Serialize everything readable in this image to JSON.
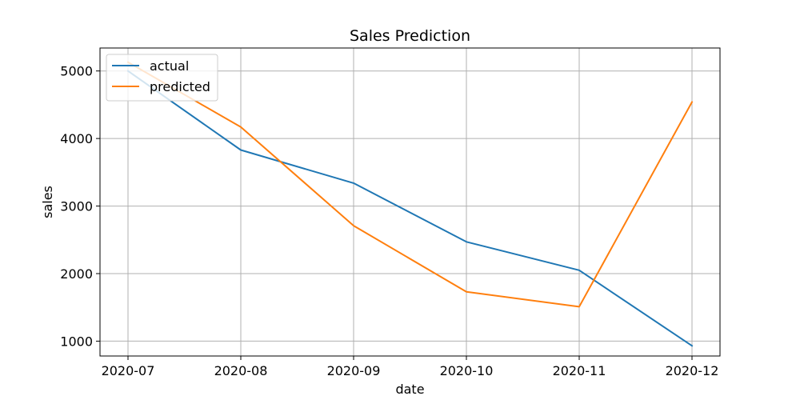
{
  "chart_data": {
    "type": "line",
    "title": "Sales Prediction",
    "xlabel": "date",
    "ylabel": "sales",
    "categories": [
      "2020-07",
      "2020-08",
      "2020-09",
      "2020-10",
      "2020-11",
      "2020-12"
    ],
    "series": [
      {
        "name": "actual",
        "color": "#1f77b4",
        "values": [
          5000,
          3830,
          3340,
          2470,
          2050,
          930
        ]
      },
      {
        "name": "predicted",
        "color": "#ff7f0e",
        "values": [
          5130,
          4170,
          2710,
          1730,
          1510,
          4540
        ]
      }
    ],
    "ylim": [
      780,
      5340
    ],
    "yticks": [
      1000,
      2000,
      3000,
      4000,
      5000
    ],
    "grid": true,
    "legend": "top-left"
  }
}
